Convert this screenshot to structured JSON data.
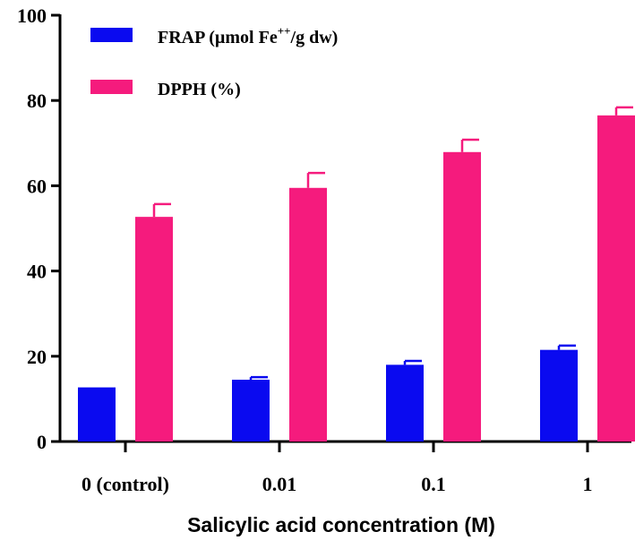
{
  "chart_data": {
    "type": "bar",
    "title": "",
    "xlabel": "Salicylic acid concentration (M)",
    "ylabel": "",
    "ylim": [
      0,
      100
    ],
    "yticks": [
      0,
      20,
      40,
      60,
      80,
      100
    ],
    "categories": [
      "0 (control)",
      "0.01",
      "0.1",
      "1"
    ],
    "series": [
      {
        "name": "FRAP (µmol Fe++/g dw)",
        "legend_main": "FRAP (µmol Fe",
        "legend_sup": "++",
        "legend_tail": "/g dw)",
        "color": "#0a0af0",
        "values": [
          12.7,
          14.5,
          18.0,
          21.5
        ],
        "errors": [
          0.0,
          0.6,
          0.9,
          1.0
        ]
      },
      {
        "name": "DPPH (%)",
        "legend_main": "DPPH (%)",
        "legend_sup": "",
        "legend_tail": "",
        "color": "#f51b7d",
        "values": [
          52.7,
          59.5,
          67.9,
          76.5
        ],
        "errors": [
          3.0,
          3.5,
          2.9,
          1.9
        ]
      }
    ],
    "legend_position": "top-left"
  }
}
